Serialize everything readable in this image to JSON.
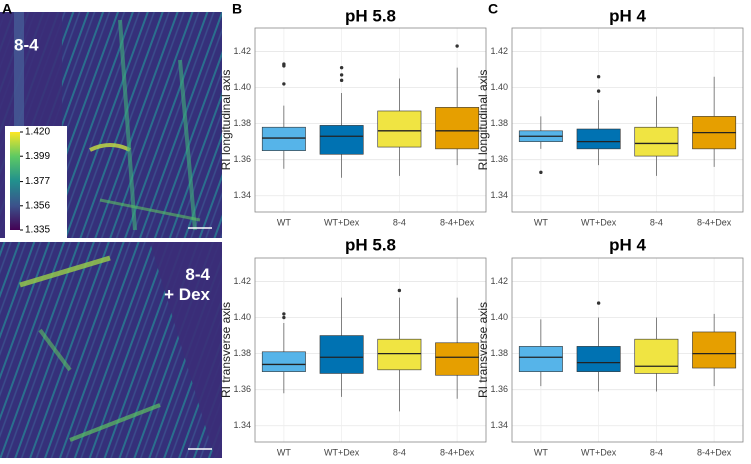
{
  "panels": [
    "A",
    "B",
    "C"
  ],
  "image_panel": {
    "top_label": "8-4",
    "bottom_label": "8-4\n+ Dex",
    "colorbar_ticks": [
      {
        "value": 1.42,
        "label": "1.420"
      },
      1.399,
      1.377,
      1.356,
      1.335
    ]
  },
  "chart_data": [
    {
      "type": "box",
      "title": "pH 5.8",
      "y_label": "RI longitudinal axis",
      "categories": [
        "WT",
        "WT+Dex",
        "8-4",
        "8-4+Dex"
      ],
      "colors": [
        "#56b4e9",
        "#0072b2",
        "#f0e442",
        "#e69f00"
      ],
      "stats": [
        {
          "min": 1.355,
          "q1": 1.365,
          "median": 1.372,
          "q3": 1.378,
          "max": 1.39,
          "outliers": [
            1.413,
            1.412,
            1.402
          ]
        },
        {
          "min": 1.35,
          "q1": 1.363,
          "median": 1.373,
          "q3": 1.379,
          "max": 1.397,
          "outliers": [
            1.411,
            1.407,
            1.404
          ]
        },
        {
          "min": 1.351,
          "q1": 1.367,
          "median": 1.376,
          "q3": 1.387,
          "max": 1.405,
          "outliers": []
        },
        {
          "min": 1.357,
          "q1": 1.366,
          "median": 1.376,
          "q3": 1.389,
          "max": 1.411,
          "outliers": [
            1.423
          ]
        }
      ],
      "ylim": [
        1.331,
        1.433
      ],
      "yticks": [
        1.34,
        1.36,
        1.38,
        {
          "value": 1.4,
          "label": "1.40"
        },
        1.42
      ],
      "grid": true
    },
    {
      "type": "box",
      "title": "pH 4",
      "y_label": "RI longitudinal axis",
      "categories": [
        "WT",
        "WT+Dex",
        "8-4",
        "8-4+Dex"
      ],
      "colors": [
        "#56b4e9",
        "#0072b2",
        "#f0e442",
        "#e69f00"
      ],
      "stats": [
        {
          "min": 1.366,
          "q1": 1.37,
          "median": 1.373,
          "q3": 1.376,
          "max": 1.384,
          "outliers": [
            1.353
          ]
        },
        {
          "min": 1.357,
          "q1": 1.366,
          "median": 1.37,
          "q3": 1.377,
          "max": 1.393,
          "outliers": [
            1.406,
            1.398
          ]
        },
        {
          "min": 1.351,
          "q1": 1.362,
          "median": 1.369,
          "q3": 1.378,
          "max": 1.395,
          "outliers": []
        },
        {
          "min": 1.356,
          "q1": 1.366,
          "median": 1.375,
          "q3": 1.384,
          "max": 1.406,
          "outliers": []
        }
      ],
      "ylim": [
        1.331,
        1.433
      ],
      "yticks": [
        1.34,
        1.36,
        1.38,
        {
          "value": 1.4,
          "label": "1.40"
        },
        1.42
      ],
      "grid": true
    },
    {
      "type": "box",
      "title": "pH 5.8",
      "y_label": "RI transverse axis",
      "categories": [
        "WT",
        "WT+Dex",
        "8-4",
        "8-4+Dex"
      ],
      "colors": [
        "#56b4e9",
        "#0072b2",
        "#f0e442",
        "#e69f00"
      ],
      "stats": [
        {
          "min": 1.358,
          "q1": 1.37,
          "median": 1.374,
          "q3": 1.381,
          "max": 1.397,
          "outliers": [
            1.402,
            1.4
          ]
        },
        {
          "min": 1.356,
          "q1": 1.369,
          "median": 1.378,
          "q3": 1.39,
          "max": 1.411,
          "outliers": []
        },
        {
          "min": 1.348,
          "q1": 1.371,
          "median": 1.38,
          "q3": 1.388,
          "max": 1.411,
          "outliers": [
            1.415
          ]
        },
        {
          "min": 1.355,
          "q1": 1.368,
          "median": 1.378,
          "q3": 1.386,
          "max": 1.411,
          "outliers": []
        }
      ],
      "ylim": [
        1.331,
        1.433
      ],
      "yticks": [
        1.34,
        1.36,
        1.38,
        {
          "value": 1.4,
          "label": "1.40"
        },
        1.42
      ],
      "grid": true
    },
    {
      "type": "box",
      "title": "pH 4",
      "y_label": "RI transverse axis",
      "categories": [
        "WT",
        "WT+Dex",
        "8-4",
        "8-4+Dex"
      ],
      "colors": [
        "#56b4e9",
        "#0072b2",
        "#f0e442",
        "#e69f00"
      ],
      "stats": [
        {
          "min": 1.362,
          "q1": 1.37,
          "median": 1.378,
          "q3": 1.384,
          "max": 1.399,
          "outliers": []
        },
        {
          "min": 1.359,
          "q1": 1.37,
          "median": 1.375,
          "q3": 1.384,
          "max": 1.4,
          "outliers": [
            1.408
          ]
        },
        {
          "min": 1.359,
          "q1": 1.369,
          "median": 1.373,
          "q3": 1.388,
          "max": 1.4,
          "outliers": []
        },
        {
          "min": 1.362,
          "q1": 1.372,
          "median": 1.38,
          "q3": 1.392,
          "max": 1.402,
          "outliers": []
        }
      ],
      "ylim": [
        1.331,
        1.433
      ],
      "yticks": [
        1.34,
        1.36,
        1.38,
        {
          "value": 1.4,
          "label": "1.40"
        },
        1.42
      ],
      "grid": true
    }
  ]
}
